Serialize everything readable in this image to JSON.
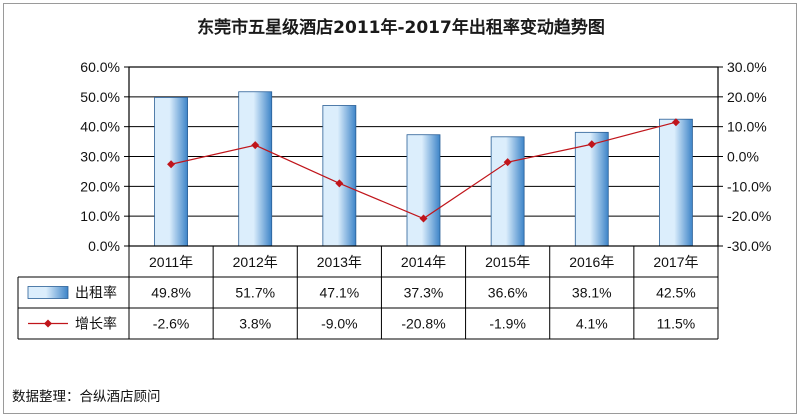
{
  "chart_data": {
    "type": "bar+line",
    "title": "东莞市五星级酒店2011年-2017年出租率变动趋势图",
    "categories": [
      "2011年",
      "2012年",
      "2013年",
      "2014年",
      "2015年",
      "2016年",
      "2017年"
    ],
    "series": [
      {
        "name": "出租率",
        "kind": "bar",
        "axis": "left",
        "values": [
          49.8,
          51.7,
          47.1,
          37.3,
          36.6,
          38.1,
          42.5
        ],
        "labels": [
          "49.8%",
          "51.7%",
          "47.1%",
          "37.3%",
          "36.6%",
          "38.1%",
          "42.5%"
        ]
      },
      {
        "name": "增长率",
        "kind": "line",
        "axis": "right",
        "values": [
          -2.6,
          3.8,
          -9.0,
          -20.8,
          -1.9,
          4.1,
          11.5
        ],
        "labels": [
          "-2.6%",
          "3.8%",
          "-9.0%",
          "-20.8%",
          "-1.9%",
          "4.1%",
          "11.5%"
        ]
      }
    ],
    "y_left": {
      "range": [
        0,
        60
      ],
      "ticks": [
        "0.0%",
        "10.0%",
        "20.0%",
        "30.0%",
        "40.0%",
        "50.0%",
        "60.0%"
      ]
    },
    "y_right": {
      "range": [
        -30,
        30
      ],
      "ticks": [
        "-30.0%",
        "-20.0%",
        "-10.0%",
        "0.0%",
        "10.0%",
        "20.0%",
        "30.0%"
      ]
    },
    "grid": true,
    "legend": "data-table-left",
    "source": "数据整理：合纵酒店顾问",
    "colors": {
      "bar_light": "#dceefc",
      "bar_dark": "#3d84c8",
      "bar_edge": "#2a5f96",
      "line": "#c0151b",
      "grid": "#000000"
    }
  }
}
